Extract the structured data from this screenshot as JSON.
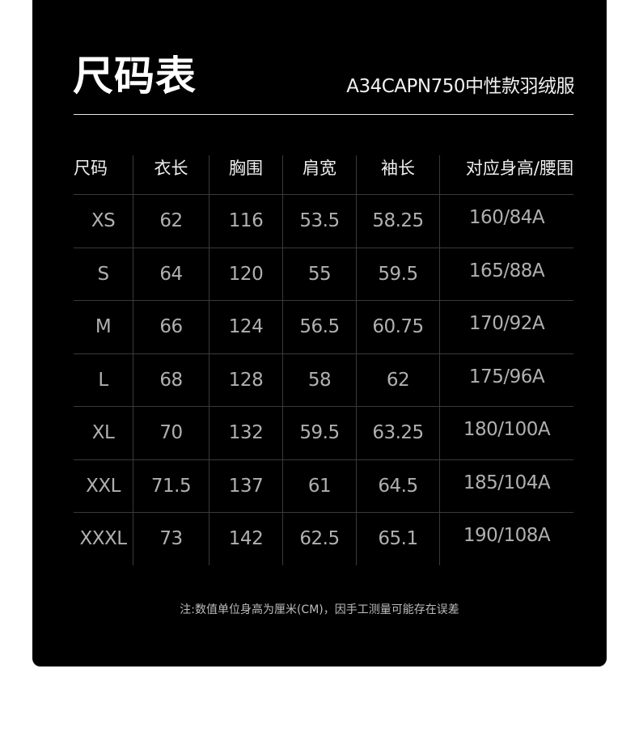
{
  "header": {
    "title": "尺码表",
    "subtitle": "A34CAPN750中性款羽绒服"
  },
  "table": {
    "columns": [
      "尺码",
      "衣长",
      "胸围",
      "肩宽",
      "袖长",
      "对应身高/腰围"
    ],
    "rows": [
      [
        "XS",
        "62",
        "116",
        "53.5",
        "58.25",
        "160/84A"
      ],
      [
        "S",
        "64",
        "120",
        "55",
        "59.5",
        "165/88A"
      ],
      [
        "M",
        "66",
        "124",
        "56.5",
        "60.75",
        "170/92A"
      ],
      [
        "L",
        "68",
        "128",
        "58",
        "62",
        "175/96A"
      ],
      [
        "XL",
        "70",
        "132",
        "59.5",
        "63.25",
        "180/100A"
      ],
      [
        "XXL",
        "71.5",
        "137",
        "61",
        "64.5",
        "185/104A"
      ],
      [
        "XXXL",
        "73",
        "142",
        "62.5",
        "65.1",
        "190/108A"
      ]
    ]
  },
  "footnote": "注:数值单位身高为厘米(CM)，因手工测量可能存在误差",
  "colors": {
    "background": "#000000",
    "header_text": "#f0f0f0",
    "body_text": "#b0b0b0",
    "grid": "#3a3a3a"
  }
}
